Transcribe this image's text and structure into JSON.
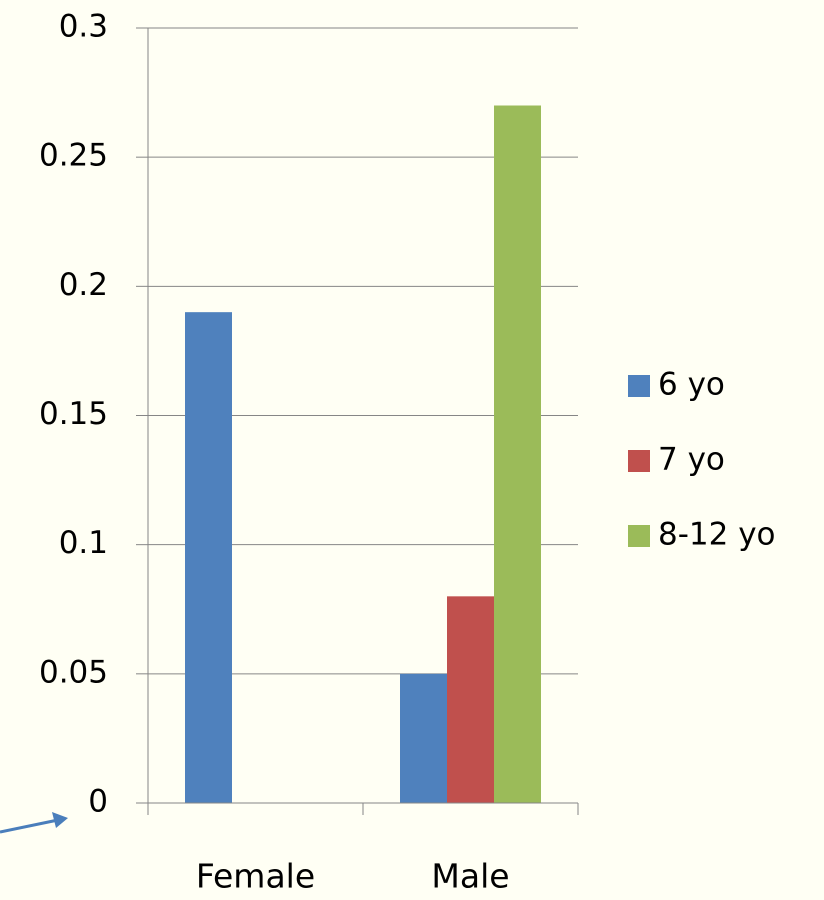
{
  "chart_data": {
    "type": "bar",
    "categories": [
      "Female",
      "Male"
    ],
    "series": [
      {
        "name": "6 yo",
        "color": "#4f81bd",
        "values": [
          0.19,
          0.05
        ]
      },
      {
        "name": "7 yo",
        "color": "#c0504d",
        "values": [
          0,
          0.08
        ]
      },
      {
        "name": "8-12 yo",
        "color": "#9bbb59",
        "values": [
          0,
          0.27
        ]
      }
    ],
    "ylim": [
      0,
      0.3
    ],
    "yticks": [
      0,
      0.05,
      0.1,
      0.15,
      0.2,
      0.25,
      0.3
    ],
    "grid": true,
    "legend": "right"
  }
}
